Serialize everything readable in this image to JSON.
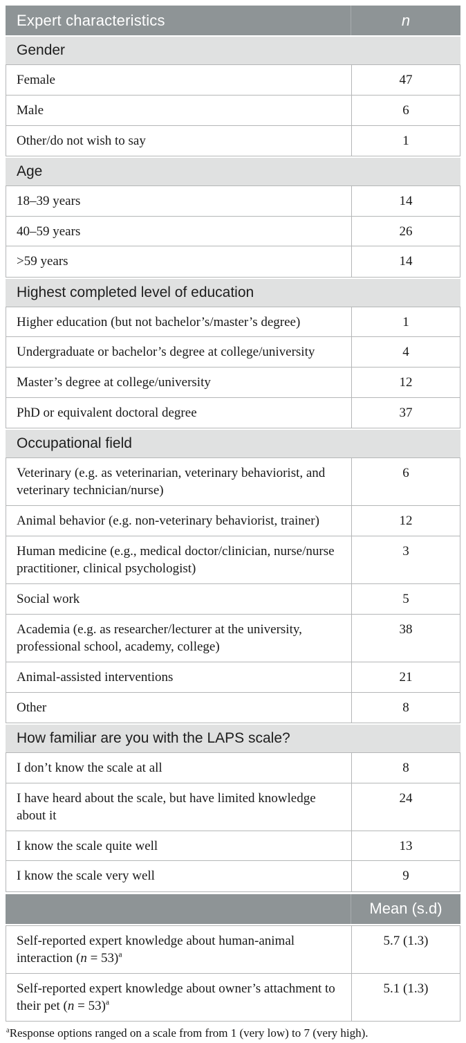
{
  "colors": {
    "header_bg": "#8e9496",
    "section_bg": "#e0e1e1",
    "border": "#b4b6b7",
    "header_divider": "#a8adaf",
    "text_dark": "#1d1d1d",
    "header_text": "#ffffff"
  },
  "header": {
    "label": "Expert characteristics",
    "value_label": "n"
  },
  "sections": [
    {
      "title": "Gender",
      "rows": [
        {
          "label": "Female",
          "value": "47"
        },
        {
          "label": "Male",
          "value": "6"
        },
        {
          "label": "Other/do not wish to say",
          "value": "1"
        }
      ]
    },
    {
      "title": "Age",
      "rows": [
        {
          "label": "18–39 years",
          "value": "14"
        },
        {
          "label": "40–59 years",
          "value": "26"
        },
        {
          "label": ">59 years",
          "value": "14"
        }
      ]
    },
    {
      "title": "Highest completed level of education",
      "rows": [
        {
          "label": "Higher education (but not bachelor’s/master’s degree)",
          "value": "1"
        },
        {
          "label": "Undergraduate or bachelor’s degree at college/university",
          "value": "4"
        },
        {
          "label": "Master’s degree at college/university",
          "value": "12"
        },
        {
          "label": "PhD or equivalent doctoral degree",
          "value": "37"
        }
      ]
    },
    {
      "title": "Occupational field",
      "rows": [
        {
          "label": "Veterinary (e.g. as veterinarian, veterinary behaviorist, and veterinary technician/nurse)",
          "value": "6"
        },
        {
          "label": "Animal behavior (e.g. non-veterinary behaviorist, trainer)",
          "value": "12"
        },
        {
          "label": "Human medicine (e.g., medical doctor/clinician, nurse/nurse practitioner, clinical psychologist)",
          "value": "3"
        },
        {
          "label": "Social work",
          "value": "5"
        },
        {
          "label": "Academia (e.g. as researcher/lecturer at the university, professional school, academy, college)",
          "value": "38"
        },
        {
          "label": "Animal-assisted interventions",
          "value": "21"
        },
        {
          "label": "Other",
          "value": "8"
        }
      ]
    },
    {
      "title": "How familiar are you with the LAPS scale?",
      "rows": [
        {
          "label": "I don’t know the scale at all",
          "value": "8"
        },
        {
          "label": "I have heard about the scale, but have limited knowledge about it",
          "value": "24"
        },
        {
          "label": "I know the scale quite well",
          "value": "13"
        },
        {
          "label": "I know the scale very well",
          "value": "9"
        }
      ]
    }
  ],
  "mean_block": {
    "header_label": "Mean (s.d)",
    "rows": [
      {
        "text_before": "Self-reported expert knowledge about human-animal interaction (",
        "var": "n",
        "text_after": " = 53)",
        "sup": "a",
        "value": "5.7 (1.3)"
      },
      {
        "text_before": "Self-reported expert knowledge about owner’s attachment to their pet (",
        "var": "n",
        "text_after": " = 53)",
        "sup": "a",
        "value": "5.1 (1.3)"
      }
    ]
  },
  "footnote": {
    "sup": "a",
    "text": "Response options ranged on a scale from from 1 (very low) to 7 (very high)."
  }
}
